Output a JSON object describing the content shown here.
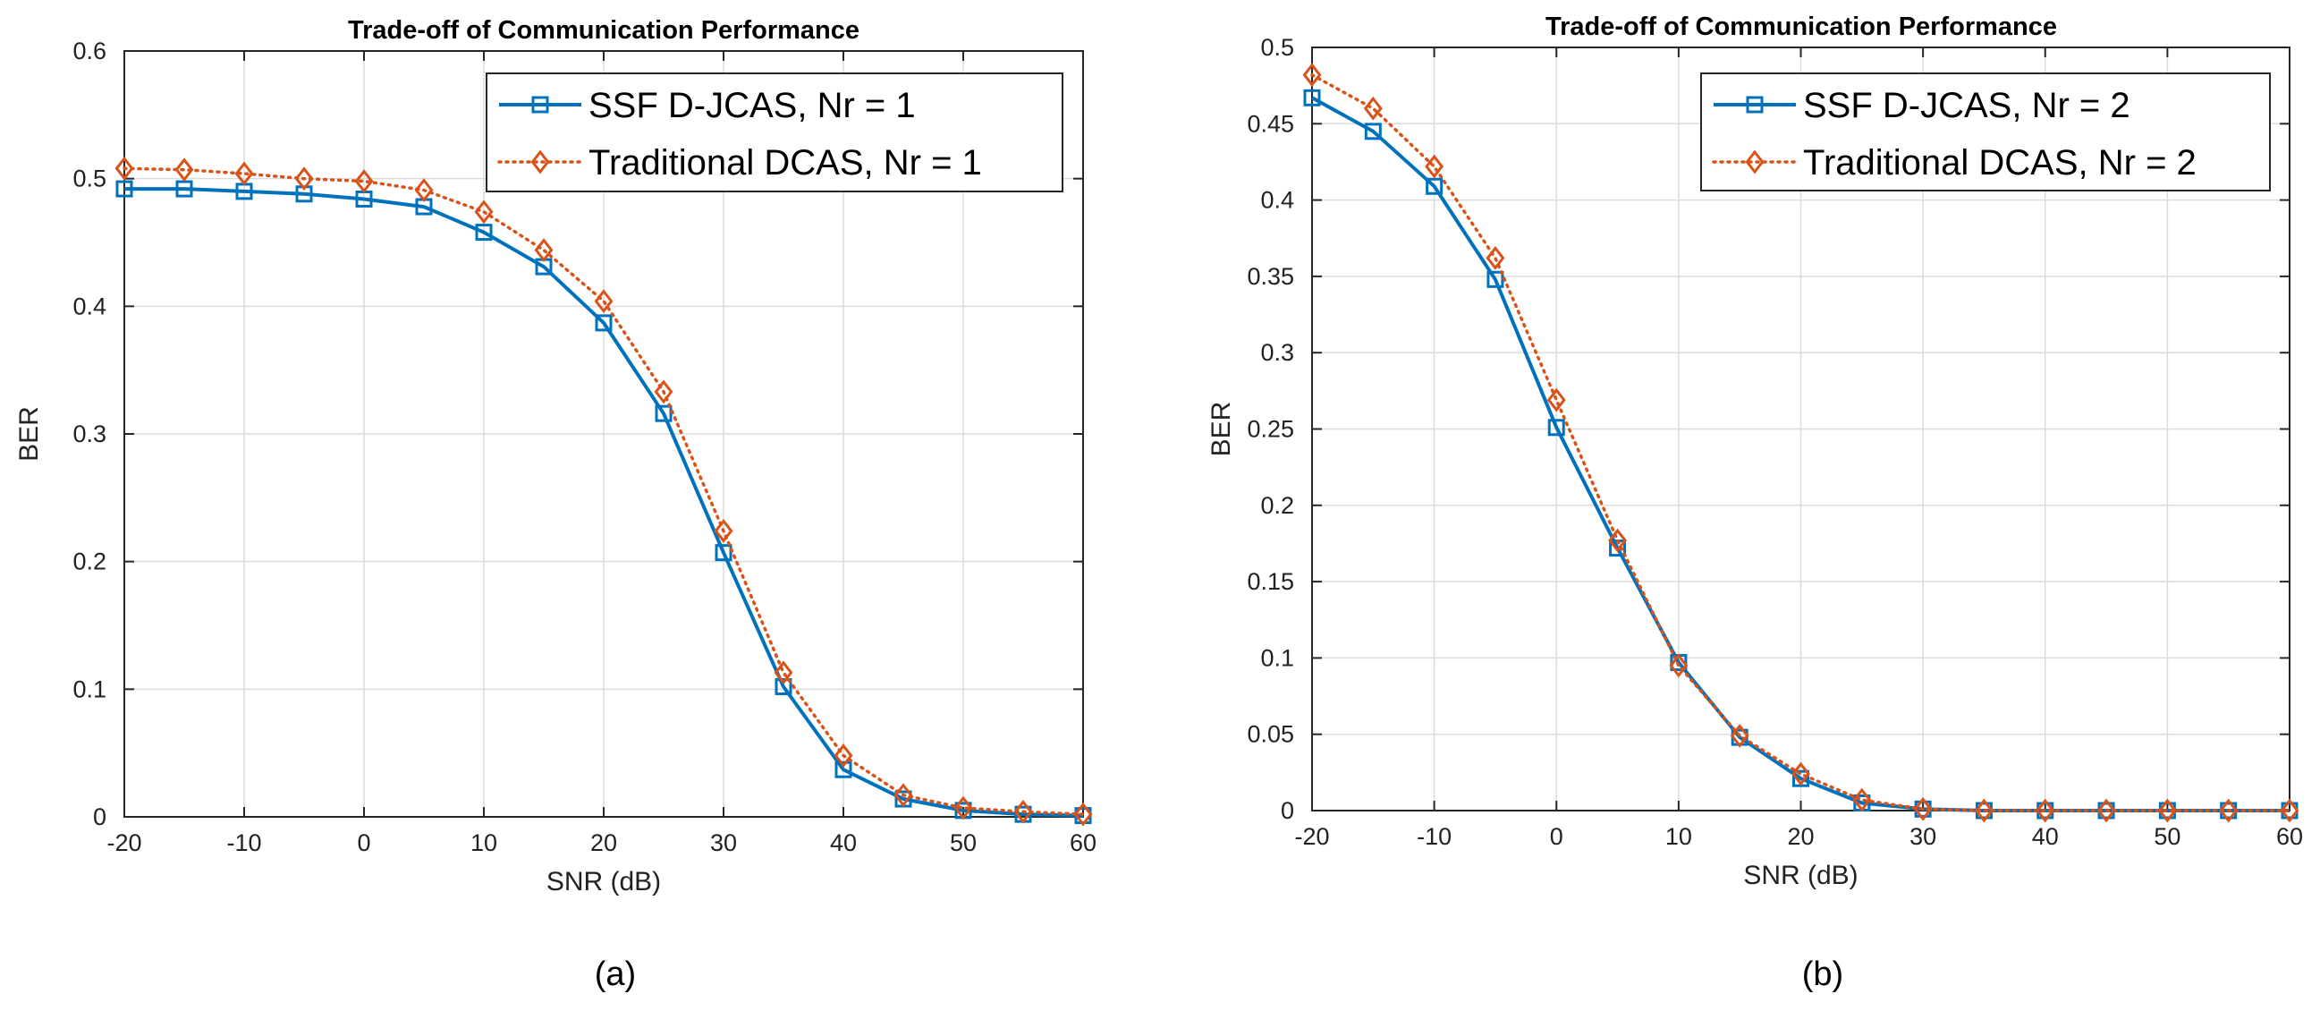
{
  "chart_data": [
    {
      "type": "line",
      "panel_caption": "(a)",
      "title": "Trade-off of Communication Performance",
      "xlabel": "SNR (dB)",
      "ylabel": "BER",
      "xlim": [
        -20,
        60
      ],
      "ylim": [
        0,
        0.6
      ],
      "xticks": [
        -20,
        -10,
        0,
        10,
        20,
        30,
        40,
        50,
        60
      ],
      "yticks": [
        0,
        0.1,
        0.2,
        0.3,
        0.4,
        0.5,
        0.6
      ],
      "xtick_labels": [
        "-20",
        "-10",
        "0",
        "10",
        "20",
        "30",
        "40",
        "50",
        "60"
      ],
      "ytick_labels": [
        "0",
        "0.1",
        "0.2",
        "0.3",
        "0.4",
        "0.5",
        "0.6"
      ],
      "grid": true,
      "legend_position": "top-right",
      "x": [
        -20,
        -15,
        -10,
        -5,
        0,
        5,
        10,
        15,
        20,
        25,
        30,
        35,
        40,
        45,
        50,
        55,
        60
      ],
      "series": [
        {
          "name": "SSF D-JCAS, Nr = 1",
          "color": "#0072BD",
          "marker": "square",
          "line_style": "solid",
          "values": [
            0.492,
            0.492,
            0.49,
            0.488,
            0.484,
            0.478,
            0.458,
            0.431,
            0.387,
            0.316,
            0.207,
            0.102,
            0.037,
            0.014,
            0.005,
            0.002,
            0.001
          ]
        },
        {
          "name": "Traditional DCAS, Nr = 1",
          "color": "#D95319",
          "marker": "diamond",
          "line_style": "dotted",
          "values": [
            0.508,
            0.507,
            0.504,
            0.5,
            0.498,
            0.491,
            0.474,
            0.444,
            0.404,
            0.333,
            0.224,
            0.113,
            0.048,
            0.017,
            0.007,
            0.004,
            0.002
          ]
        }
      ]
    },
    {
      "type": "line",
      "panel_caption": "(b)",
      "title": "Trade-off of Communication Performance",
      "xlabel": "SNR (dB)",
      "ylabel": "BER",
      "xlim": [
        -20,
        60
      ],
      "ylim": [
        0,
        0.5
      ],
      "xticks": [
        -20,
        -10,
        0,
        10,
        20,
        30,
        40,
        50,
        60
      ],
      "yticks": [
        0,
        0.05,
        0.1,
        0.15,
        0.2,
        0.25,
        0.3,
        0.35,
        0.4,
        0.45,
        0.5
      ],
      "xtick_labels": [
        "-20",
        "-10",
        "0",
        "10",
        "20",
        "30",
        "40",
        "50",
        "60"
      ],
      "ytick_labels": [
        "0",
        "0.05",
        "0.1",
        "0.15",
        "0.2",
        "0.25",
        "0.3",
        "0.35",
        "0.4",
        "0.45",
        "0.5"
      ],
      "grid": true,
      "legend_position": "top-right",
      "x": [
        -20,
        -15,
        -10,
        -5,
        0,
        5,
        10,
        15,
        20,
        25,
        30,
        35,
        40,
        45,
        50,
        55,
        60
      ],
      "series": [
        {
          "name": "SSF D-JCAS, Nr = 2",
          "color": "#0072BD",
          "marker": "square",
          "line_style": "solid",
          "values": [
            0.467,
            0.445,
            0.409,
            0.348,
            0.251,
            0.172,
            0.097,
            0.048,
            0.021,
            0.005,
            0.001,
            0.0,
            0.0,
            0.0,
            0.0,
            0.0,
            0.0
          ]
        },
        {
          "name": "Traditional DCAS, Nr = 2",
          "color": "#D95319",
          "marker": "diamond",
          "line_style": "dotted",
          "values": [
            0.482,
            0.46,
            0.422,
            0.362,
            0.269,
            0.177,
            0.095,
            0.049,
            0.024,
            0.007,
            0.001,
            0.0,
            0.0,
            0.0,
            0.0,
            0.0,
            0.0
          ]
        }
      ]
    }
  ]
}
